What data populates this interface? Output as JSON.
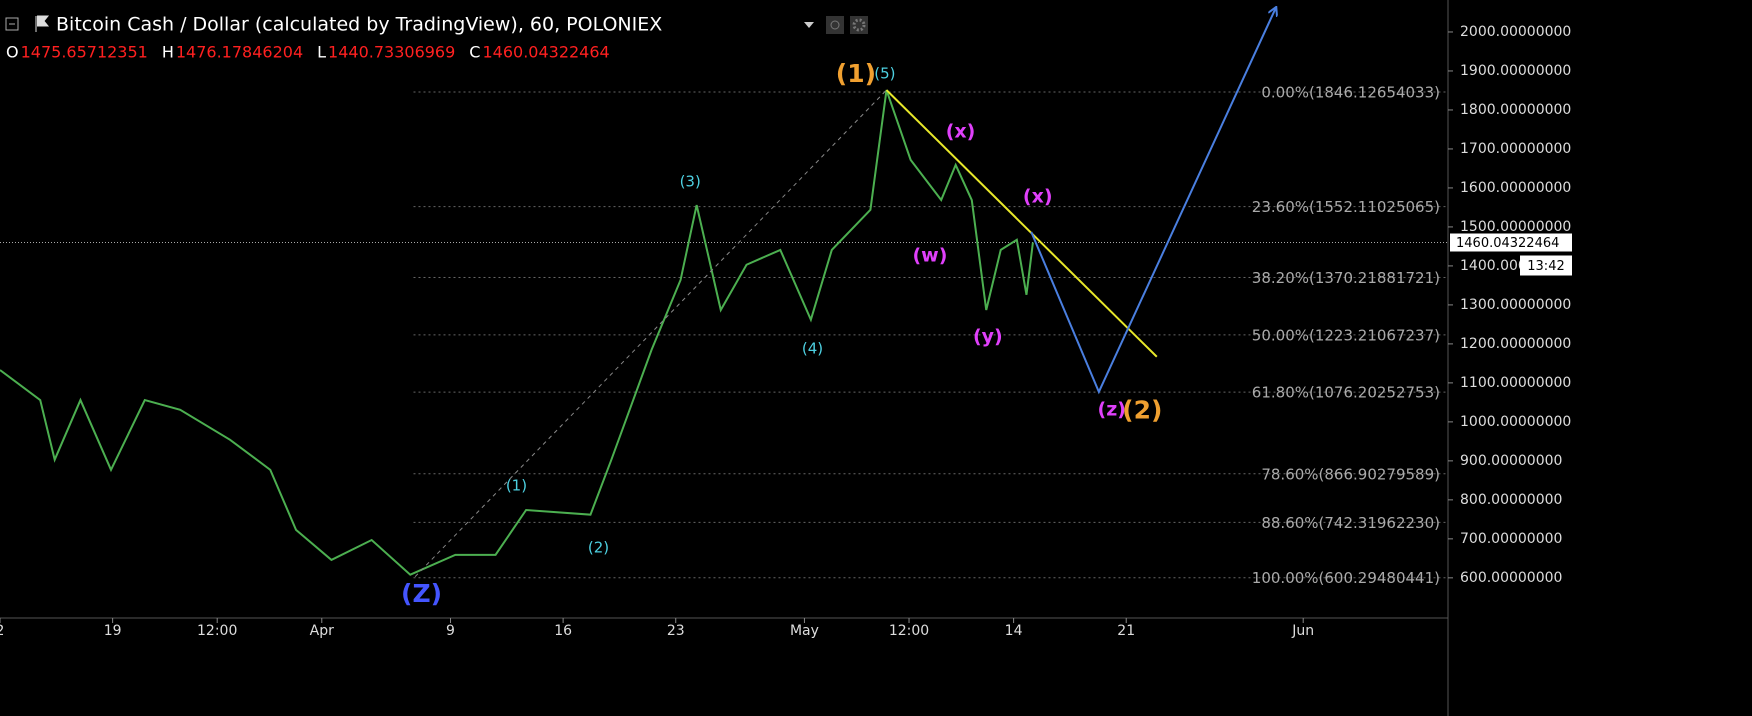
{
  "chart_data": {
    "type": "line",
    "title": "Bitcoin Cash / Dollar (calculated by TradingView), 60, POLONIEX",
    "ohlc": [
      {
        "label": "O",
        "value": 1475.65712351
      },
      {
        "label": "H",
        "value": 1476.17846204
      },
      {
        "label": "L",
        "value": 1440.73306969
      },
      {
        "label": "C",
        "value": 1460.04322464
      }
    ],
    "series": [
      {
        "name": "BCHUSD",
        "color": "#4caf50",
        "x": [
          12,
          14.5,
          15.4,
          17,
          18.9,
          21,
          23.2,
          26.3,
          28.8,
          30.4,
          32.6,
          35.1,
          37.5,
          40.3,
          42.8,
          44.7,
          48.7,
          50,
          52.5,
          54.3,
          55.3,
          56.8,
          58.4,
          60.5,
          62.4,
          63.7,
          66.1,
          67.1,
          68.6,
          70.5,
          71.4,
          72.4,
          73.3,
          74.2,
          75.2,
          75.8,
          76.2
        ],
        "values": [
          1133,
          1056,
          903,
          1056,
          877,
          1056,
          1031,
          954,
          877,
          723,
          646,
          697,
          608,
          659,
          659,
          774,
          762,
          903,
          1185,
          1364,
          1556,
          1287,
          1403,
          1441,
          1262,
          1441,
          1544,
          1851,
          1672,
          1569,
          1659,
          1569,
          1287,
          1441,
          1467,
          1326,
          1460
        ]
      }
    ],
    "last_price": {
      "value": 1460.04322464,
      "countdown": "13:42"
    },
    "xlim": [
      12,
      102
    ],
    "xticks": [
      {
        "value": 12,
        "label": "2"
      },
      19,
      {
        "value": 25.5,
        "label": "12:00"
      },
      {
        "value": 32,
        "label": "Apr"
      },
      {
        "value": 40,
        "label": "9"
      },
      {
        "value": 47,
        "label": "16"
      },
      {
        "value": 54,
        "label": "23"
      },
      {
        "value": 62,
        "label": "May"
      },
      {
        "value": 68.5,
        "label": "12:00"
      },
      {
        "value": 75,
        "label": "14"
      },
      {
        "value": 82,
        "label": "21"
      },
      {
        "value": 93,
        "label": "Jun"
      }
    ],
    "ylim": [
      497,
      2082
    ],
    "yticks": [
      {
        "value": 600,
        "label": "600.00000000"
      },
      {
        "value": 700,
        "label": "700.00000000"
      },
      {
        "value": 800,
        "label": "800.00000000"
      },
      {
        "value": 900,
        "label": "900.00000000"
      },
      {
        "value": 1000,
        "label": "1000.00000000"
      },
      {
        "value": 1100,
        "label": "1100.00000000"
      },
      {
        "value": 1200,
        "label": "1200.00000000"
      },
      {
        "value": 1300,
        "label": "1300.00000000"
      },
      {
        "value": 1400,
        "label": "1400.00000000"
      },
      {
        "value": 1500,
        "label": "1500.00000000"
      },
      {
        "value": 1600,
        "label": "1600.00000000"
      },
      {
        "value": 1700,
        "label": "1700.00000000"
      },
      {
        "value": 1800,
        "label": "1800.00000000"
      },
      {
        "value": 1900,
        "label": "1900.00000000"
      },
      {
        "value": 2000,
        "label": "2000.00000000"
      }
    ],
    "fib_start": 37.7,
    "fib_levels": [
      {
        "value": 1846.12654033,
        "label": "0.00%(1846.12654033)"
      },
      {
        "value": 1552.11025065,
        "label": "23.60%(1552.11025065)"
      },
      {
        "value": 1370.21881721,
        "label": "38.20%(1370.21881721)"
      },
      {
        "value": 1223.21067237,
        "label": "50.00%(1223.21067237)"
      },
      {
        "value": 1076.20252753,
        "label": "61.80%(1076.20252753)"
      },
      {
        "value": 866.90279589,
        "label": "78.60%(866.90279589)"
      },
      {
        "value": 742.3196223,
        "label": "88.60%(742.31962230)"
      },
      {
        "value": 600.29480441,
        "label": "100.00%(600.29480441)"
      }
    ],
    "lines": [
      {
        "color": "#888888",
        "dashed": true,
        "x": [
          37.8,
          67.1
        ],
        "values": [
          603,
          1851
        ]
      },
      {
        "color": "#e8e82a",
        "x": [
          67.1,
          83.9
        ],
        "values": [
          1851,
          1167
        ]
      },
      {
        "color": "#4a7fe0",
        "arrow": true,
        "x": [
          76.1,
          80.3,
          91.3
        ],
        "values": [
          1487,
          1077,
          2062
        ]
      }
    ],
    "annotations": [
      {
        "text": "(1)",
        "x": 65.2,
        "y": 1890,
        "color": "#f0a030",
        "size": "large"
      },
      {
        "text": "(5)",
        "x": 67,
        "y": 1892,
        "color": "#4dd0e1",
        "size": "small"
      },
      {
        "text": "(3)",
        "x": 54.9,
        "y": 1615,
        "color": "#4dd0e1",
        "size": "small"
      },
      {
        "text": "(4)",
        "x": 62.5,
        "y": 1187,
        "color": "#4dd0e1",
        "size": "small"
      },
      {
        "text": "(1)",
        "x": 44.1,
        "y": 836,
        "color": "#4dd0e1",
        "size": "small"
      },
      {
        "text": "(2)",
        "x": 49.2,
        "y": 677,
        "color": "#4dd0e1",
        "size": "small"
      },
      {
        "text": "(Z)",
        "x": 38.2,
        "y": 556,
        "color": "#4455ff",
        "size": "large"
      },
      {
        "text": "(x)",
        "x": 71.7,
        "y": 1744,
        "color": "#e040fb",
        "size": "medium"
      },
      {
        "text": "(x)",
        "x": 76.5,
        "y": 1577,
        "color": "#e040fb",
        "size": "medium"
      },
      {
        "text": "(w)",
        "x": 69.8,
        "y": 1426,
        "color": "#e040fb",
        "size": "medium"
      },
      {
        "text": "(y)",
        "x": 73.4,
        "y": 1218,
        "color": "#e040fb",
        "size": "medium"
      },
      {
        "text": "(z)",
        "x": 81.1,
        "y": 1031,
        "color": "#e040fb",
        "size": "medium"
      },
      {
        "text": "(2)",
        "x": 83,
        "y": 1026,
        "color": "#f0a030",
        "size": "large"
      }
    ]
  }
}
